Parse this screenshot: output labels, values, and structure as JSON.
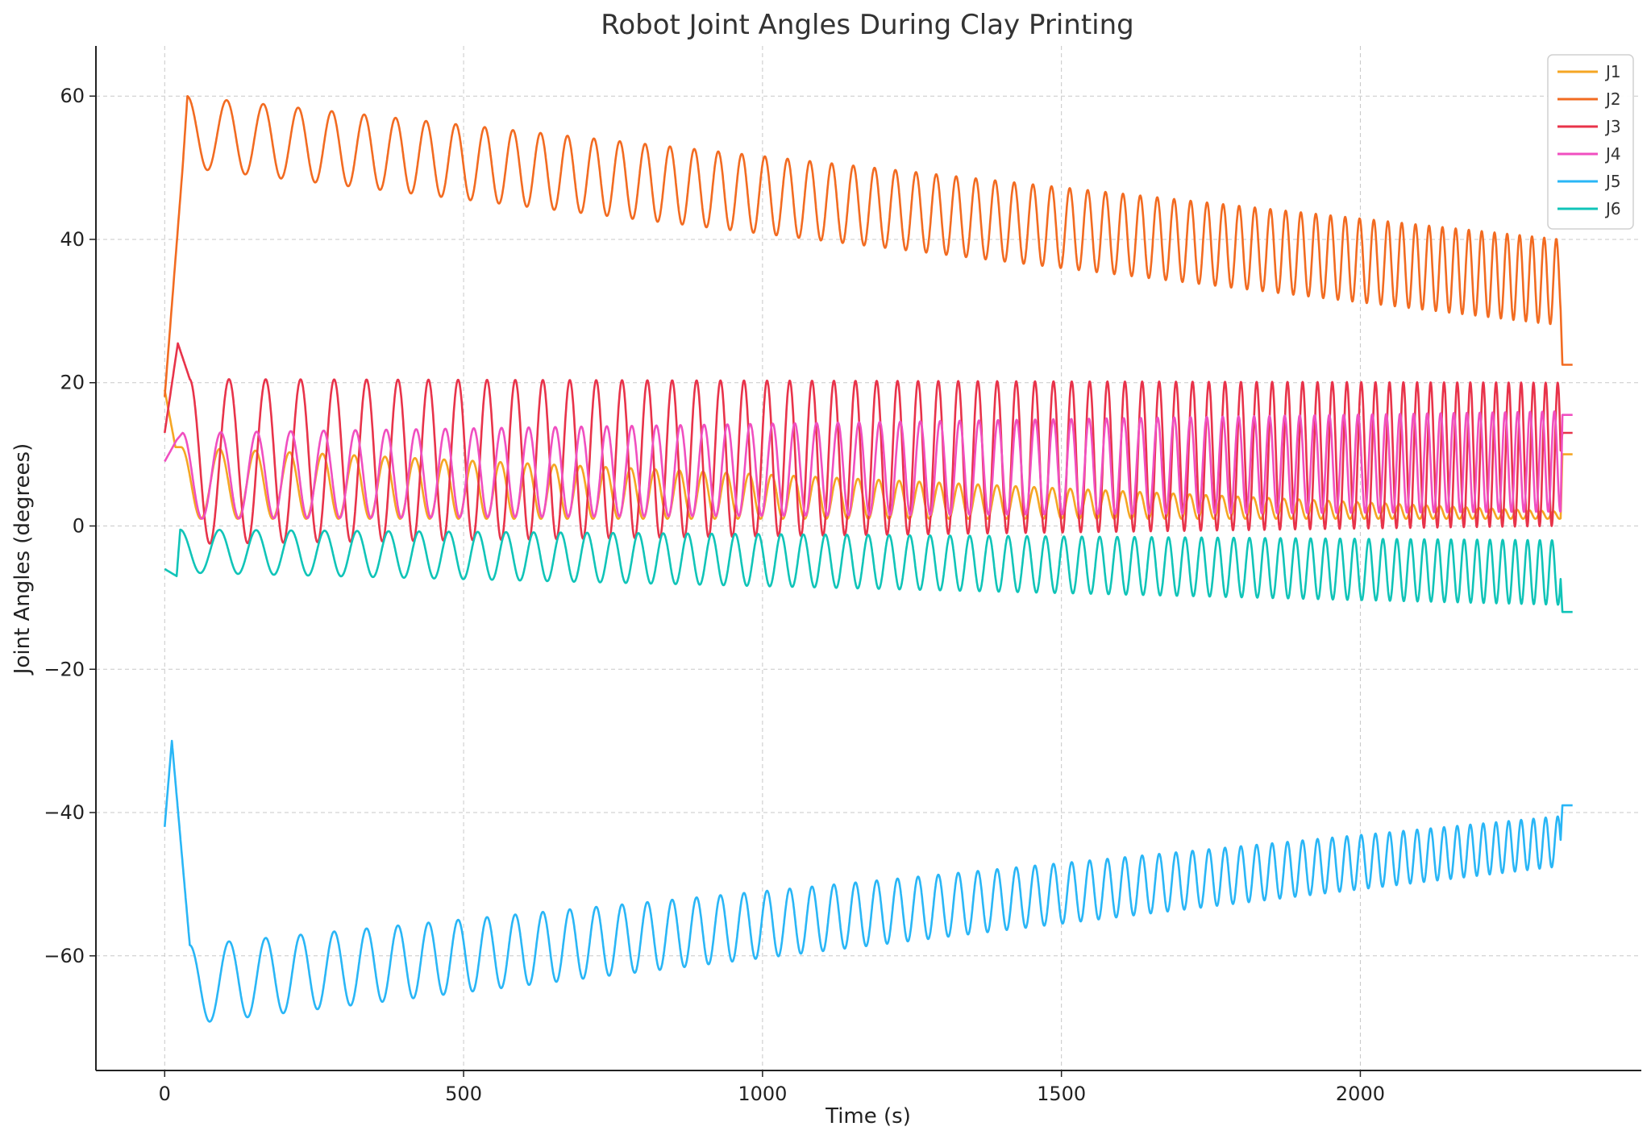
{
  "chart_data": {
    "type": "line",
    "title": "Robot Joint Angles During Clay Printing",
    "xlabel": "Time (s)",
    "ylabel": "Joint Angles (degrees)",
    "xlim": [
      -115,
      2470
    ],
    "ylim": [
      -76,
      67
    ],
    "x_ticks": [
      0,
      500,
      1000,
      1500,
      2000
    ],
    "x_tick_labels": [
      "0",
      "500",
      "1000",
      "1500",
      "2000"
    ],
    "y_ticks": [
      60,
      40,
      20,
      0,
      -20,
      -40,
      -60
    ],
    "y_tick_labels": [
      "60",
      "40",
      "20",
      "0",
      "−20",
      "−40",
      "−60"
    ],
    "grid": true,
    "legend_position": "top-right",
    "x_end": 2335,
    "series": [
      {
        "name": "J1",
        "color": "#f5a623",
        "model": {
          "start": 19,
          "peak_t": 18,
          "peak": 11,
          "osc_t0": 28,
          "c0": 6,
          "c1": 1.5,
          "amp0": 5,
          "amp1": 0.5,
          "period0": 70,
          "period1": 20,
          "end": 10
        }
      },
      {
        "name": "J2",
        "color": "#f26b21",
        "model": {
          "start": 18,
          "peak_t": 30,
          "peak": 50,
          "osc_t0": 38,
          "c0": 55,
          "c1": 34,
          "amp0": 5,
          "amp1": 6,
          "period0": 72,
          "period1": 20,
          "end": 22.5
        }
      },
      {
        "name": "J3",
        "color": "#e8334a",
        "model": {
          "start": 13,
          "peak_t": 22,
          "peak": 25.5,
          "osc_t0": 42,
          "c0": 9,
          "c1": 10,
          "amp0": 11.5,
          "amp1": 10,
          "period0": 72,
          "period1": 20,
          "end": 13
        }
      },
      {
        "name": "J4",
        "color": "#f04fc0",
        "model": {
          "start": 9,
          "peak_t": 20,
          "peak": 12,
          "osc_t0": 30,
          "c0": 7,
          "c1": 9,
          "amp0": 6,
          "amp1": 7,
          "period0": 70,
          "period1": 20,
          "end": 15.5
        }
      },
      {
        "name": "J5",
        "color": "#29b6f6",
        "model": {
          "start": -42,
          "peak_t": 12,
          "peak": -30,
          "osc_t0": 42,
          "c0": -64,
          "c1": -44,
          "amp0": 5.5,
          "amp1": 3.5,
          "period0": 72,
          "period1": 20,
          "end": -39
        }
      },
      {
        "name": "J6",
        "color": "#10c4b8",
        "model": {
          "start": -6,
          "peak_t": 20,
          "peak": -7,
          "osc_t0": 26,
          "c0": -3.5,
          "c1": -6.5,
          "amp0": 3,
          "amp1": 4.5,
          "period0": 72,
          "period1": 20,
          "end": -12
        }
      }
    ]
  }
}
